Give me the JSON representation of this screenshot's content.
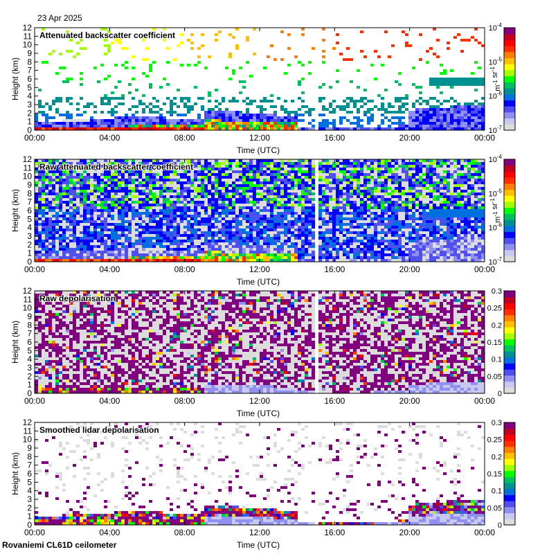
{
  "header": {
    "date": "23 Apr 2025"
  },
  "footer": {
    "instrument": "Rovaniemi CL61D ceilometer"
  },
  "colors": {
    "rainbow": [
      "#dcdcdc",
      "#c8c8f0",
      "#9090f0",
      "#5050f0",
      "#0000ff",
      "#0070e0",
      "#009090",
      "#00c060",
      "#00ff00",
      "#a0ff00",
      "#ffff00",
      "#ffc000",
      "#ff8000",
      "#ff3000",
      "#ff0000",
      "#c00020",
      "#800080"
    ],
    "axis": "#000000",
    "background": "#ffffff"
  },
  "chart_data": [
    {
      "type": "heatmap",
      "title": "Attenuated backscatter coefficient",
      "xlabel": "Time (UTC)",
      "ylabel": "Height (km)",
      "xlim": [
        0,
        24
      ],
      "ylim": [
        0,
        12
      ],
      "xticks": [
        "00:00",
        "04:00",
        "08:00",
        "12:00",
        "16:00",
        "20:00",
        "00:00"
      ],
      "yticks": [
        "0",
        "1",
        "2",
        "3",
        "4",
        "5",
        "6",
        "7",
        "8",
        "9",
        "10",
        "11",
        "12"
      ],
      "colorbar": {
        "label": "m-1 sr-1",
        "scale": "log",
        "range": [
          1e-07,
          0.0001
        ],
        "ticks": [
          {
            "base": "10",
            "exp": "-7"
          },
          {
            "base": "10",
            "exp": "-6"
          },
          {
            "base": "10",
            "exp": "-5"
          },
          {
            "base": "10",
            "exp": "-4"
          }
        ]
      },
      "data_gap_hours": [
        14.9,
        15.2
      ]
    },
    {
      "type": "heatmap",
      "title": "Raw attenuated backscatter coefficient",
      "xlabel": "Time (UTC)",
      "ylabel": "Height (km)",
      "xlim": [
        0,
        24
      ],
      "ylim": [
        0,
        12
      ],
      "xticks": [
        "00:00",
        "04:00",
        "08:00",
        "12:00",
        "16:00",
        "20:00",
        "00:00"
      ],
      "yticks": [
        "0",
        "1",
        "2",
        "3",
        "4",
        "5",
        "6",
        "7",
        "8",
        "9",
        "10",
        "11",
        "12"
      ],
      "colorbar": {
        "label": "m-1 sr-1",
        "scale": "log",
        "range": [
          1e-07,
          0.0001
        ],
        "ticks": [
          {
            "base": "10",
            "exp": "-7"
          },
          {
            "base": "10",
            "exp": "-6"
          },
          {
            "base": "10",
            "exp": "-5"
          },
          {
            "base": "10",
            "exp": "-4"
          }
        ]
      },
      "data_gap_hours": [
        14.9,
        15.2
      ]
    },
    {
      "type": "heatmap",
      "title": "Raw depolarisation",
      "xlabel": "Time (UTC)",
      "ylabel": "Height (km)",
      "xlim": [
        0,
        24
      ],
      "ylim": [
        0,
        12
      ],
      "xticks": [
        "00:00",
        "04:00",
        "08:00",
        "12:00",
        "16:00",
        "20:00",
        "00:00"
      ],
      "yticks": [
        "0",
        "1",
        "2",
        "3",
        "4",
        "5",
        "6",
        "7",
        "8",
        "9",
        "10",
        "11",
        "12"
      ],
      "colorbar": {
        "label": "",
        "scale": "linear",
        "range": [
          0,
          0.3
        ],
        "ticks": [
          "0",
          "0.05",
          "0.1",
          "0.15",
          "0.2",
          "0.25",
          "0.3"
        ]
      },
      "data_gap_hours": [
        14.9,
        15.2
      ]
    },
    {
      "type": "heatmap",
      "title": "Smoothed lidar depolarisation",
      "xlabel": "Time (UTC)",
      "ylabel": "Height (km)",
      "xlim": [
        0,
        24
      ],
      "ylim": [
        0,
        12
      ],
      "xticks": [
        "00:00",
        "04:00",
        "08:00",
        "12:00",
        "16:00",
        "20:00",
        "00:00"
      ],
      "yticks": [
        "0",
        "1",
        "2",
        "3",
        "4",
        "5",
        "6",
        "7",
        "8",
        "9",
        "10",
        "11",
        "12"
      ],
      "colorbar": {
        "label": "",
        "scale": "linear",
        "range": [
          0,
          0.3
        ],
        "ticks": [
          "0",
          "0.05",
          "0.1",
          "0.15",
          "0.2",
          "0.25",
          "0.3"
        ]
      },
      "data_gap_hours": [
        14.9,
        15.2
      ]
    }
  ]
}
